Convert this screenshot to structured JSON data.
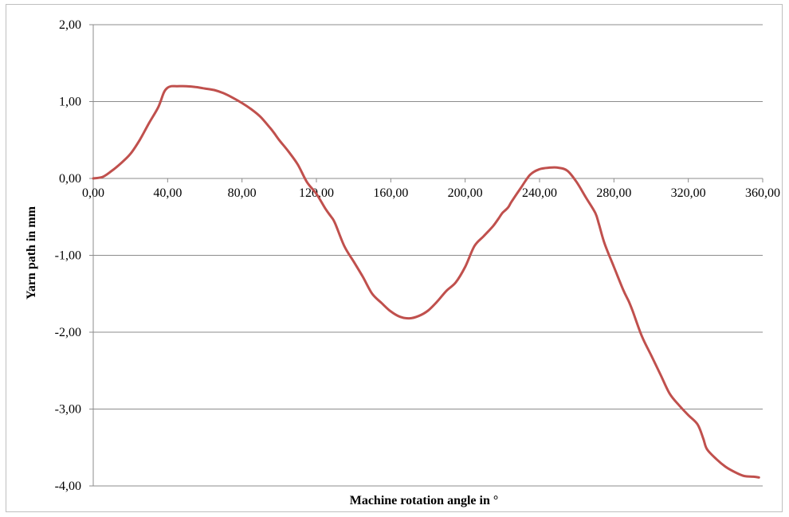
{
  "chart_data": {
    "type": "line",
    "title": "",
    "xlabel": "Machine rotation angle in °",
    "ylabel": "Yarn path in mm",
    "xlim": [
      0,
      360
    ],
    "ylim": [
      -4,
      2
    ],
    "x_ticks": [
      0,
      40,
      80,
      120,
      160,
      200,
      240,
      280,
      320,
      360
    ],
    "x_tick_labels": [
      "0,00",
      "40,00",
      "80,00",
      "120,00",
      "160,00",
      "200,00",
      "240,00",
      "280,00",
      "320,00",
      "360,00"
    ],
    "y_ticks": [
      2,
      1,
      0,
      -1,
      -2,
      -3,
      -4
    ],
    "y_tick_labels": [
      "2,00",
      "1,00",
      "0,00",
      "-1,00",
      "-2,00",
      "-3,00",
      "-4,00"
    ],
    "grid": "horizontal",
    "legend": "none",
    "line_color": "#c0504d",
    "series": [
      {
        "x": [
          0,
          5,
          10,
          15,
          20,
          25,
          30,
          35,
          38,
          40,
          42,
          45,
          50,
          55,
          60,
          65,
          70,
          75,
          80,
          85,
          90,
          95,
          97,
          100,
          105,
          110,
          115,
          120,
          125,
          128,
          130,
          135,
          140,
          145,
          150,
          155,
          160,
          165,
          170,
          175,
          180,
          185,
          190,
          195,
          200,
          205,
          210,
          215,
          218,
          220,
          223,
          225,
          230,
          235,
          240,
          245,
          250,
          255,
          260,
          265,
          270,
          272,
          275,
          280,
          285,
          288,
          290,
          295,
          300,
          305,
          310,
          315,
          320,
          325,
          328,
          330,
          335,
          340,
          345,
          350,
          355,
          358
        ],
        "y": [
          0.0,
          0.02,
          0.1,
          0.2,
          0.32,
          0.5,
          0.72,
          0.93,
          1.12,
          1.18,
          1.2,
          1.2,
          1.2,
          1.19,
          1.17,
          1.15,
          1.11,
          1.05,
          0.98,
          0.9,
          0.8,
          0.66,
          0.6,
          0.5,
          0.35,
          0.18,
          -0.05,
          -0.2,
          -0.4,
          -0.5,
          -0.58,
          -0.88,
          -1.08,
          -1.28,
          -1.5,
          -1.62,
          -1.73,
          -1.8,
          -1.82,
          -1.79,
          -1.72,
          -1.6,
          -1.46,
          -1.35,
          -1.15,
          -0.88,
          -0.75,
          -0.62,
          -0.52,
          -0.45,
          -0.38,
          -0.3,
          -0.12,
          0.05,
          0.12,
          0.14,
          0.14,
          0.1,
          -0.05,
          -0.25,
          -0.45,
          -0.6,
          -0.85,
          -1.15,
          -1.45,
          -1.6,
          -1.72,
          -2.05,
          -2.3,
          -2.55,
          -2.8,
          -2.95,
          -3.08,
          -3.2,
          -3.38,
          -3.52,
          -3.65,
          -3.75,
          -3.82,
          -3.87,
          -3.88,
          -3.89
        ]
      }
    ]
  }
}
